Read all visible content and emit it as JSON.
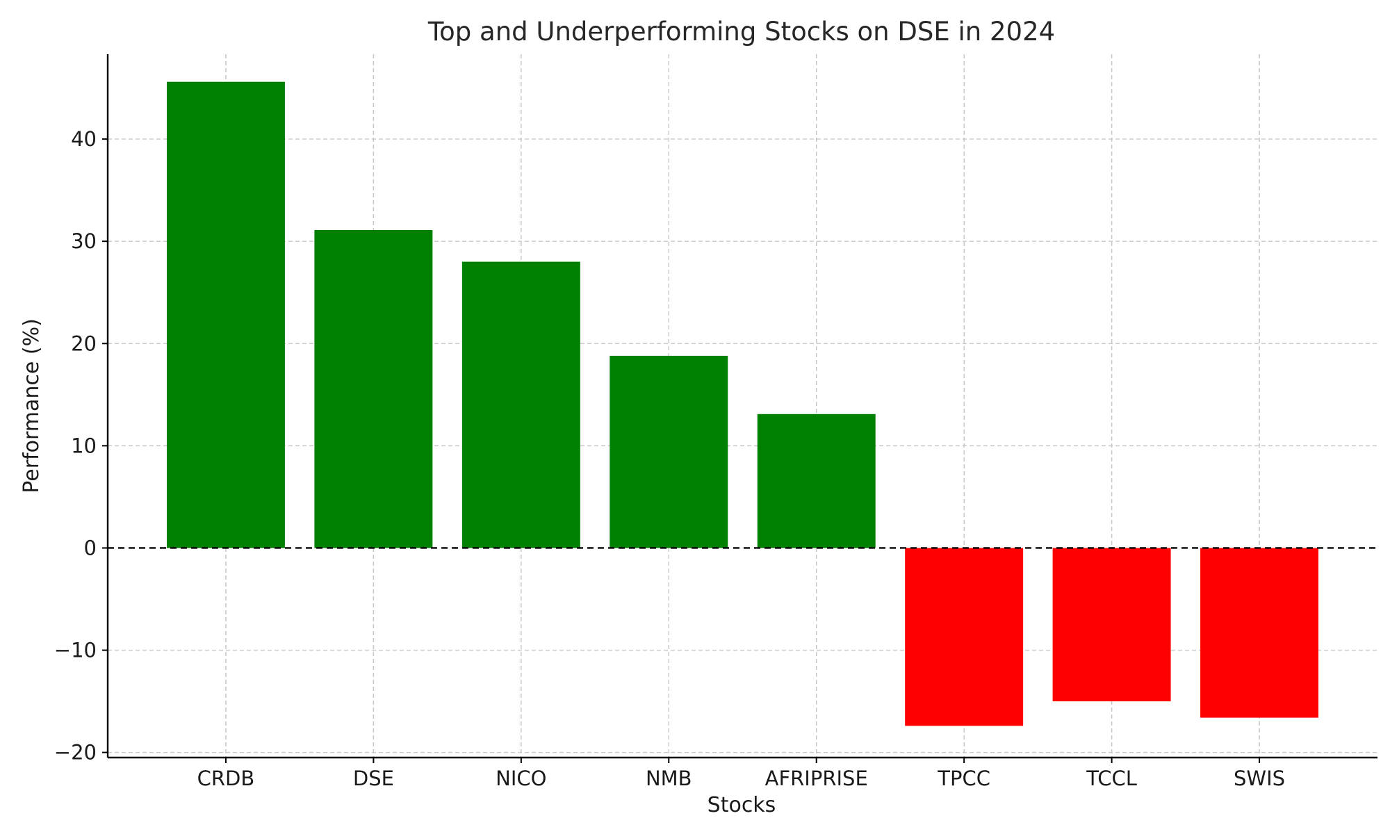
{
  "chart_data": {
    "type": "bar",
    "title": "Top and Underperforming Stocks on DSE in 2024",
    "xlabel": "Stocks",
    "ylabel": "Performance (%)",
    "categories": [
      "CRDB",
      "DSE",
      "NICO",
      "NMB",
      "AFRIPRISE",
      "TPCC",
      "TCCL",
      "SWIS"
    ],
    "values": [
      45.6,
      31.1,
      28.0,
      18.8,
      13.1,
      -17.4,
      -15.0,
      -16.6
    ],
    "colors": [
      "#008000",
      "#008000",
      "#008000",
      "#008000",
      "#008000",
      "#ff0000",
      "#ff0000",
      "#ff0000"
    ],
    "ylim": [
      -20.5,
      48.3
    ],
    "yticks": [
      -20,
      -10,
      0,
      10,
      20,
      30,
      40
    ],
    "ytick_labels": [
      "−20",
      "−10",
      "0",
      "10",
      "20",
      "30",
      "40"
    ],
    "grid": true,
    "reference_line": {
      "y": 0,
      "style": "dashed",
      "color": "#000000"
    }
  }
}
